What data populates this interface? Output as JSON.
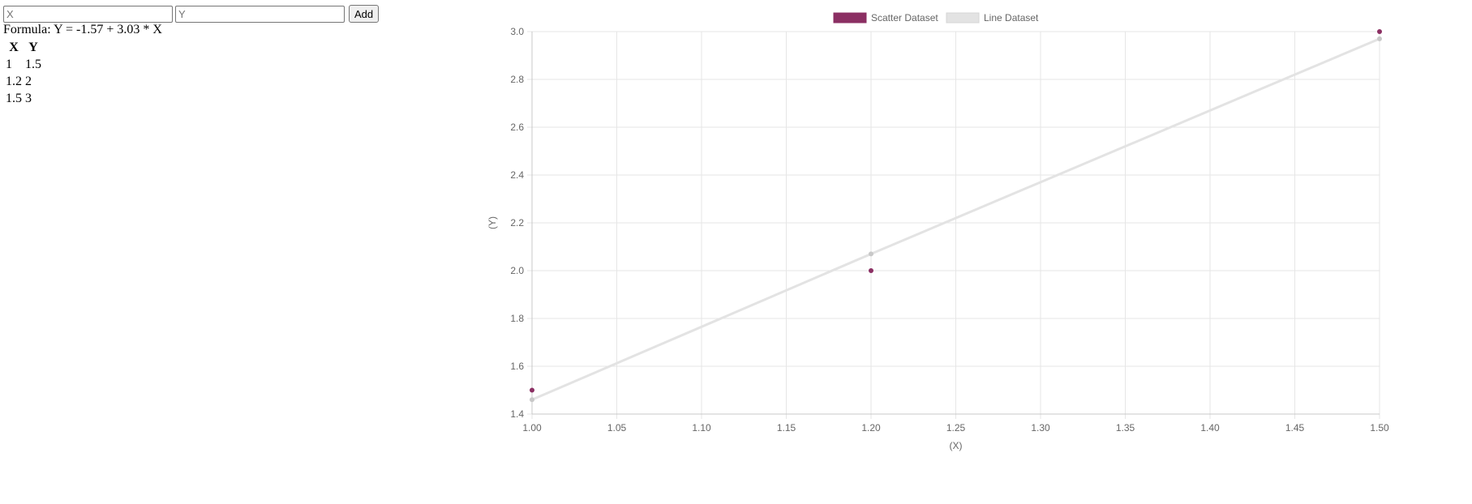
{
  "form": {
    "x_placeholder": "X",
    "y_placeholder": "Y",
    "add_label": "Add"
  },
  "formula": "Formula: Y = -1.57 + 3.03 * X",
  "table": {
    "headers": [
      "X",
      "Y"
    ],
    "rows": [
      [
        "1",
        "1.5"
      ],
      [
        "1.2",
        "2"
      ],
      [
        "1.5",
        "3"
      ]
    ]
  },
  "colors": {
    "scatter": "#8b2f63",
    "line": "#e3e3e3",
    "line_point": "#c8c8c8",
    "grid": "#e6e6e6",
    "axis": "#c8c8c8"
  },
  "chart_data": {
    "type": "scatter",
    "title": "",
    "xlabel": "(X)",
    "ylabel": "(Y)",
    "xlim": [
      1.0,
      1.5
    ],
    "ylim": [
      1.4,
      3.0
    ],
    "x_ticks": [
      "1.00",
      "1.05",
      "1.10",
      "1.15",
      "1.20",
      "1.25",
      "1.30",
      "1.35",
      "1.40",
      "1.45",
      "1.50"
    ],
    "y_ticks": [
      "1.4",
      "1.6",
      "1.8",
      "2.0",
      "2.2",
      "2.4",
      "2.6",
      "2.8",
      "3.0"
    ],
    "grid": true,
    "legend_position": "top-center",
    "series": [
      {
        "name": "Scatter Dataset",
        "kind": "scatter",
        "x": [
          1.0,
          1.2,
          1.5
        ],
        "y": [
          1.5,
          2.0,
          3.0
        ]
      },
      {
        "name": "Line Dataset",
        "kind": "line",
        "x": [
          1.0,
          1.2,
          1.5
        ],
        "y": [
          1.46,
          2.07,
          2.97
        ]
      }
    ]
  }
}
